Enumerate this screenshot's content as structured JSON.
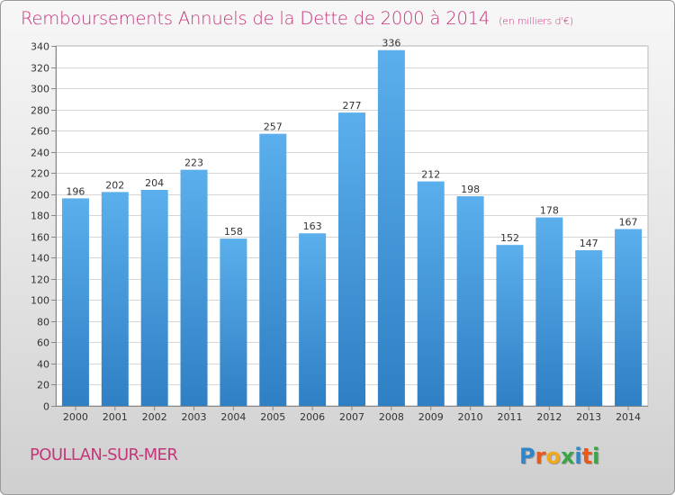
{
  "chart_data": {
    "type": "bar",
    "title": "Remboursements Annuels de la Dette de 2000 à 2014",
    "subtitle": "(en milliers d'€)",
    "categories": [
      "2000",
      "2001",
      "2002",
      "2003",
      "2004",
      "2005",
      "2006",
      "2007",
      "2008",
      "2009",
      "2010",
      "2011",
      "2012",
      "2013",
      "2014"
    ],
    "values": [
      196,
      202,
      204,
      223,
      158,
      257,
      163,
      277,
      336,
      212,
      198,
      152,
      178,
      147,
      167
    ],
    "ylim": [
      0,
      340
    ],
    "yticks": [
      0,
      20,
      40,
      60,
      80,
      100,
      120,
      140,
      160,
      180,
      200,
      220,
      240,
      260,
      280,
      300,
      320,
      340
    ],
    "xlabel": "",
    "ylabel": "",
    "grid": true,
    "colors": {
      "bar": "#4a9de0",
      "bar_dark": "#2f7fc4",
      "title": "#c3367a"
    }
  },
  "commune": "POULLAN-SUR-MER",
  "logo": {
    "text": "Proxiti",
    "letter_colors": [
      "#2f86c9",
      "#e8591a",
      "#f2a81d",
      "#3aa447",
      "#2f86c9",
      "#e8591a",
      "#3aa447"
    ]
  }
}
